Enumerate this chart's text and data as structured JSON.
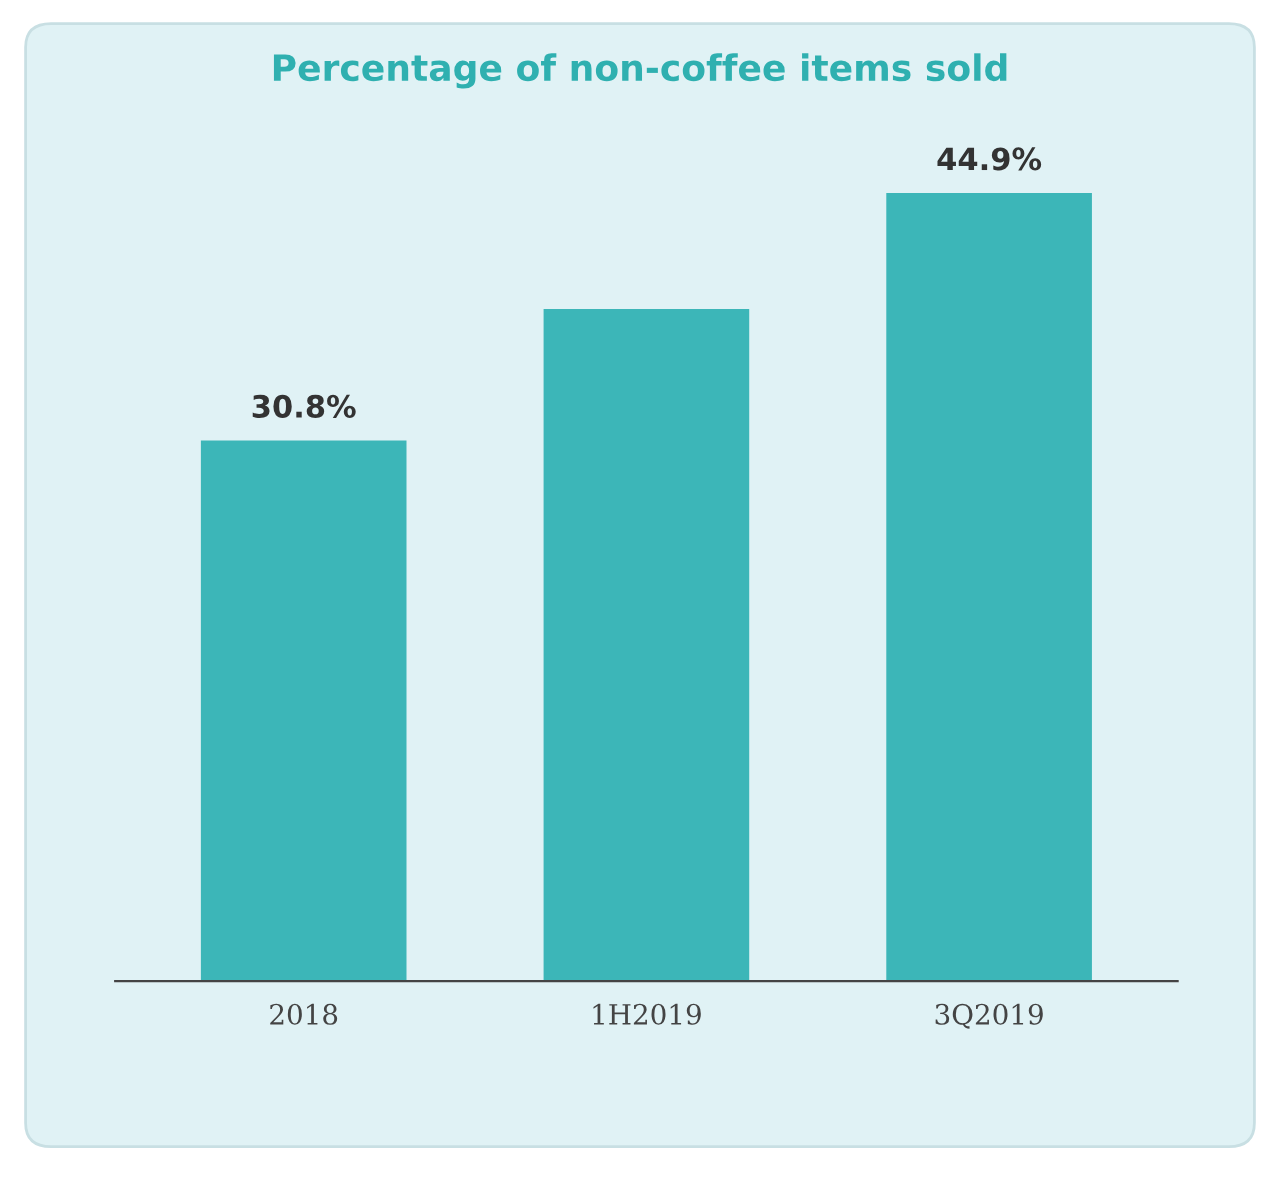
{
  "chart_data": {
    "type": "bar",
    "title": "Percentage of non-coffee items sold",
    "categories": [
      "2018",
      "1H2019",
      "3Q2019"
    ],
    "values": [
      30.8,
      38.3,
      44.9
    ],
    "value_labels": [
      "30.8%",
      null,
      "44.9%"
    ],
    "color": "#3cb6b8",
    "grid": false
  }
}
